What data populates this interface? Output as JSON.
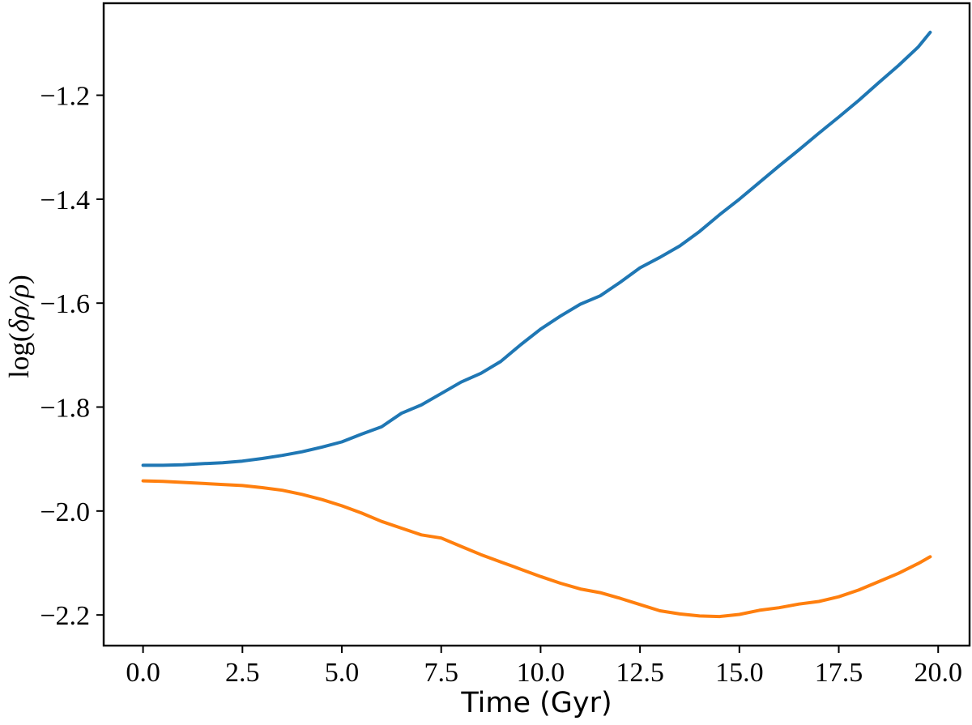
{
  "figure": {
    "background": "#ffffff",
    "spine_color": "#000000"
  },
  "chart_data": {
    "type": "line",
    "title": "",
    "xlabel": "Time (Gyr)",
    "ylabel": "log(δρ/ρ)",
    "ylabel_parts": {
      "func": "log(",
      "arg": "δρ/ρ",
      "close": ")"
    },
    "xlim": [
      -0.99,
      20.79
    ],
    "ylim": [
      -2.259,
      -1.023
    ],
    "grid": false,
    "legend": null,
    "x_ticks": [
      0.0,
      2.5,
      5.0,
      7.5,
      10.0,
      12.5,
      15.0,
      17.5,
      20.0
    ],
    "x_tick_labels": [
      "0.0",
      "2.5",
      "5.0",
      "7.5",
      "10.0",
      "12.5",
      "15.0",
      "17.5",
      "20.0"
    ],
    "y_ticks": [
      -1.2,
      -1.4,
      -1.6,
      -1.8,
      -2.0,
      -2.2
    ],
    "y_tick_labels": [
      "−1.2",
      "−1.4",
      "−1.6",
      "−1.8",
      "−2.0",
      "−2.2"
    ],
    "x": [
      0,
      0.5,
      1,
      1.5,
      2,
      2.5,
      3,
      3.5,
      4,
      4.5,
      5,
      5.5,
      6,
      6.5,
      7,
      7.5,
      8,
      8.5,
      9,
      9.5,
      10,
      10.5,
      11,
      11.5,
      12,
      12.5,
      13,
      13.5,
      14,
      14.5,
      15,
      15.5,
      16,
      16.5,
      17,
      17.5,
      18,
      18.5,
      19,
      19.5,
      19.8
    ],
    "series": [
      {
        "name": "blue-line",
        "color": "#1f77b4",
        "values": [
          -1.912,
          -1.912,
          -1.911,
          -1.909,
          -1.907,
          -1.904,
          -1.899,
          -1.893,
          -1.886,
          -1.877,
          -1.867,
          -1.852,
          -1.838,
          -1.812,
          -1.796,
          -1.774,
          -1.752,
          -1.735,
          -1.712,
          -1.68,
          -1.65,
          -1.625,
          -1.602,
          -1.586,
          -1.56,
          -1.532,
          -1.512,
          -1.49,
          -1.462,
          -1.43,
          -1.4,
          -1.368,
          -1.336,
          -1.305,
          -1.273,
          -1.242,
          -1.21,
          -1.176,
          -1.143,
          -1.107,
          -1.079
        ]
      },
      {
        "name": "orange-line",
        "color": "#ff7f0e",
        "values": [
          -1.942,
          -1.943,
          -1.945,
          -1.947,
          -1.949,
          -1.951,
          -1.955,
          -1.96,
          -1.968,
          -1.978,
          -1.99,
          -2.004,
          -2.02,
          -2.033,
          -2.046,
          -2.052,
          -2.068,
          -2.084,
          -2.098,
          -2.112,
          -2.126,
          -2.139,
          -2.15,
          -2.157,
          -2.168,
          -2.18,
          -2.192,
          -2.198,
          -2.202,
          -2.203,
          -2.199,
          -2.191,
          -2.186,
          -2.179,
          -2.174,
          -2.165,
          -2.152,
          -2.136,
          -2.12,
          -2.101,
          -2.088
        ]
      }
    ]
  }
}
